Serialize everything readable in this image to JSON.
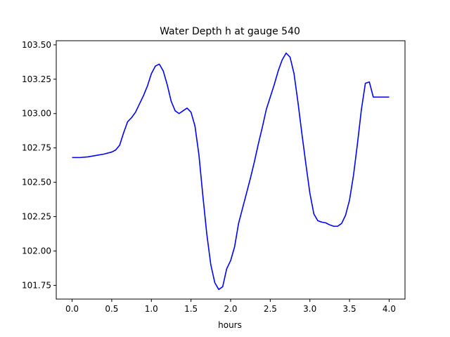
{
  "chart_data": {
    "type": "line",
    "title": "Water Depth h at gauge 540",
    "xlabel": "hours",
    "ylabel": "",
    "xlim": [
      -0.2,
      4.2
    ],
    "ylim": [
      101.65,
      103.53
    ],
    "x_ticks": [
      0.0,
      0.5,
      1.0,
      1.5,
      2.0,
      2.5,
      3.0,
      3.5,
      4.0
    ],
    "x_tick_labels": [
      "0.0",
      "0.5",
      "1.0",
      "1.5",
      "2.0",
      "2.5",
      "3.0",
      "3.5",
      "4.0"
    ],
    "y_ticks": [
      101.75,
      102.0,
      102.25,
      102.5,
      102.75,
      103.0,
      103.25,
      103.5
    ],
    "y_tick_labels": [
      "101.75",
      "102.00",
      "102.25",
      "102.50",
      "102.75",
      "103.00",
      "103.25",
      "103.50"
    ],
    "grid": false,
    "series": [
      {
        "color": "#0000ff",
        "x": [
          0.0,
          0.1,
          0.2,
          0.3,
          0.4,
          0.5,
          0.55,
          0.6,
          0.65,
          0.7,
          0.75,
          0.8,
          0.85,
          0.9,
          0.95,
          1.0,
          1.05,
          1.1,
          1.15,
          1.2,
          1.25,
          1.3,
          1.35,
          1.4,
          1.45,
          1.5,
          1.55,
          1.6,
          1.65,
          1.7,
          1.75,
          1.8,
          1.85,
          1.9,
          1.95,
          2.0,
          2.05,
          2.1,
          2.15,
          2.2,
          2.25,
          2.3,
          2.35,
          2.4,
          2.45,
          2.5,
          2.55,
          2.6,
          2.65,
          2.7,
          2.75,
          2.8,
          2.85,
          2.9,
          2.95,
          3.0,
          3.05,
          3.1,
          3.15,
          3.2,
          3.25,
          3.3,
          3.35,
          3.4,
          3.45,
          3.5,
          3.55,
          3.6,
          3.65,
          3.7,
          3.75,
          3.8,
          3.85,
          3.9,
          3.95,
          4.0
        ],
        "y": [
          102.68,
          102.68,
          102.685,
          102.695,
          102.705,
          102.72,
          102.735,
          102.77,
          102.86,
          102.94,
          102.97,
          103.01,
          103.07,
          103.13,
          103.2,
          103.29,
          103.345,
          103.36,
          103.31,
          103.21,
          103.09,
          103.02,
          103.0,
          103.02,
          103.04,
          103.01,
          102.91,
          102.7,
          102.4,
          102.12,
          101.9,
          101.77,
          101.72,
          101.74,
          101.87,
          101.93,
          102.03,
          102.2,
          102.31,
          102.42,
          102.53,
          102.65,
          102.78,
          102.9,
          103.03,
          103.12,
          103.21,
          103.31,
          103.39,
          103.44,
          103.41,
          103.29,
          103.08,
          102.85,
          102.63,
          102.42,
          102.27,
          102.22,
          102.21,
          102.205,
          102.19,
          102.18,
          102.18,
          102.2,
          102.26,
          102.37,
          102.55,
          102.78,
          103.03,
          103.22,
          103.23,
          103.12,
          103.12,
          103.12,
          103.12,
          103.12
        ]
      }
    ]
  }
}
